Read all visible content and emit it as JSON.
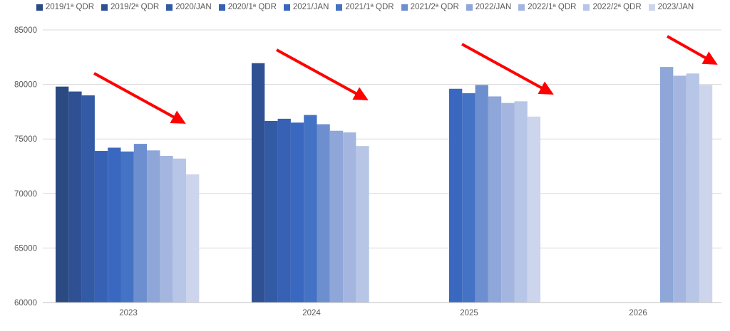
{
  "chart_data": {
    "type": "bar",
    "categories": [
      "2023",
      "2024",
      "2025",
      "2026"
    ],
    "series": [
      {
        "name": "2019/1ª QDR",
        "color": "#2c4a82",
        "values": [
          79800,
          null,
          null,
          null
        ]
      },
      {
        "name": "2019/2ª QDR",
        "color": "#2f5194",
        "values": [
          79350,
          81950,
          null,
          null
        ]
      },
      {
        "name": "2020/JAN",
        "color": "#325aa5",
        "values": [
          79000,
          76650,
          null,
          null
        ]
      },
      {
        "name": "2020/1ª QDR",
        "color": "#3661b4",
        "values": [
          73900,
          76850,
          null,
          null
        ]
      },
      {
        "name": "2021/JAN",
        "color": "#3a68c0",
        "values": [
          74200,
          76500,
          79600,
          null
        ]
      },
      {
        "name": "2021/1ª QDR",
        "color": "#4472c4",
        "values": [
          73850,
          77200,
          79200,
          null
        ]
      },
      {
        "name": "2021/2ª QDR",
        "color": "#6e8fcf",
        "values": [
          74550,
          76350,
          79950,
          null
        ]
      },
      {
        "name": "2022/JAN",
        "color": "#8ea6d8",
        "values": [
          73950,
          75750,
          78900,
          81600
        ]
      },
      {
        "name": "2022/1ª QDR",
        "color": "#a4b6df",
        "values": [
          73450,
          75600,
          78300,
          80800
        ]
      },
      {
        "name": "2022/2ª QDR",
        "color": "#b7c5e6",
        "values": [
          73200,
          74350,
          78450,
          81000
        ]
      },
      {
        "name": "2023/JAN",
        "color": "#ccd5ec",
        "values": [
          71750,
          null,
          77050,
          79950
        ]
      }
    ],
    "yticks": [
      "60000",
      "65000",
      "70000",
      "75000",
      "80000",
      "85000"
    ],
    "ylim": [
      60000,
      85000
    ],
    "grid": true,
    "legend": "top",
    "annotations": [
      {
        "type": "arrow",
        "color": "#ff0000",
        "direction": "down-right"
      },
      {
        "type": "arrow",
        "color": "#ff0000",
        "direction": "down-right"
      },
      {
        "type": "arrow",
        "color": "#ff0000",
        "direction": "down-right"
      },
      {
        "type": "arrow",
        "color": "#ff0000",
        "direction": "down-right"
      }
    ]
  }
}
